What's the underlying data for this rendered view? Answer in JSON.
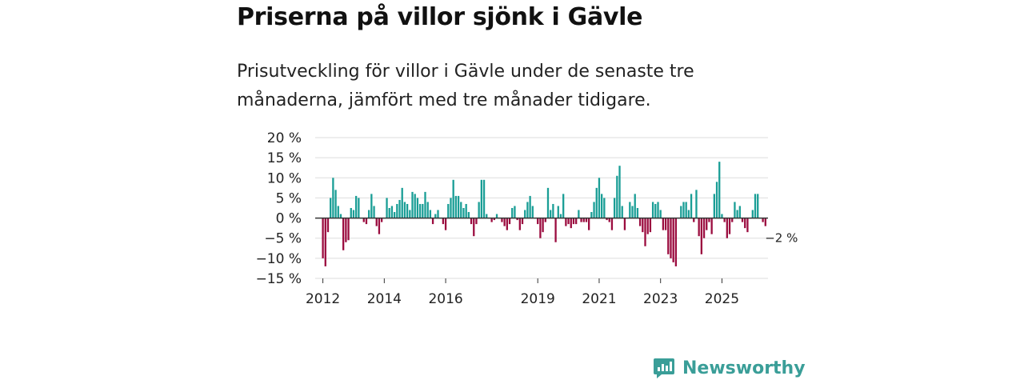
{
  "title": "Priserna på villor sjönk i Gävle",
  "subtitle": "Prisutveckling för villor i Gävle under de senaste tre månaderna, jämfört med tre månader tidigare.",
  "brand": "Newsworthy",
  "colors": {
    "positive": "#1a9e96",
    "negative": "#9b0c3f",
    "grid": "#dddddd",
    "zero": "#333333",
    "brand": "#3a9e98"
  },
  "chart_data": {
    "type": "bar",
    "title": "Priserna på villor sjönk i Gävle",
    "xlabel": "",
    "ylabel": "",
    "ylim": [
      -15,
      20
    ],
    "yticks": [
      20,
      15,
      10,
      5,
      0,
      -5,
      -10,
      -15
    ],
    "ytick_labels": [
      "20 %",
      "15 %",
      "10 %",
      "5 %",
      "0 %",
      "−5 %",
      "−10 %",
      "−15 %"
    ],
    "xlim": [
      2011.75,
      2026.5
    ],
    "xticks": [
      2012,
      2014,
      2016,
      2019,
      2021,
      2023,
      2025
    ],
    "xtick_labels": [
      "2012",
      "2014",
      "2016",
      "2019",
      "2021",
      "2023",
      "2025"
    ],
    "start": 2012,
    "step": 0.0833333,
    "end_label": "−2 %",
    "values": [
      -10,
      -12,
      -3.5,
      5,
      10,
      7,
      3,
      1,
      -8,
      -6,
      -5.5,
      2.5,
      2,
      5.5,
      5,
      0,
      -1,
      -1.5,
      2,
      6,
      3,
      -2,
      -4,
      -1,
      0,
      5,
      2.5,
      3,
      1.5,
      3.5,
      4.5,
      7.5,
      4,
      3.5,
      2,
      6.5,
      6,
      5,
      3.5,
      3.5,
      6.5,
      4,
      2,
      -1.5,
      1,
      2,
      0,
      -1.5,
      -3,
      3.5,
      5,
      9.5,
      5.5,
      5.5,
      4,
      2.5,
      3.5,
      1.5,
      -1.5,
      -4.5,
      -1.5,
      4,
      9.5,
      9.5,
      1,
      0,
      -1,
      -0.5,
      1,
      0,
      -1,
      -2,
      -3,
      -1.5,
      2.5,
      3,
      -0.5,
      -3,
      -1.5,
      2,
      4,
      5.5,
      3,
      0,
      -1.5,
      -5,
      -3.5,
      -1,
      7.5,
      2,
      3.5,
      -6,
      3,
      1,
      6,
      -2,
      -1.5,
      -2.5,
      -1.5,
      -1.5,
      2,
      -1,
      -1,
      -1,
      -3,
      1.5,
      4,
      7.5,
      10,
      6,
      5,
      -0.5,
      -1,
      -3,
      5,
      10.5,
      13,
      3,
      -3,
      0,
      4,
      3,
      6,
      2.5,
      -2,
      -3.5,
      -7,
      -4,
      -3.5,
      4,
      3.5,
      4,
      2,
      -3,
      -3,
      -9,
      -10,
      -11,
      -12,
      0,
      3,
      4,
      4,
      2,
      6,
      -1,
      7,
      -4.5,
      -9,
      -5,
      -3,
      -1,
      -4,
      6,
      9,
      14,
      1,
      -1,
      -5,
      -4,
      -1,
      4,
      2,
      3,
      -1,
      -2.5,
      -3.5,
      0,
      2,
      6,
      6,
      0,
      -1,
      -2
    ]
  }
}
